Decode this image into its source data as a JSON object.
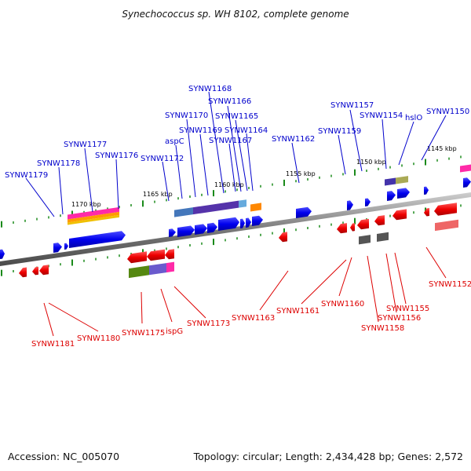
{
  "title": "Synechococcus sp. WH 8102, complete genome",
  "accession_text": "Accession: NC_005070",
  "topology_text": "Topology: circular; Length: 2,434,428 bp; Genes: 2,572",
  "colors": {
    "forward_gene": "#0000ee",
    "reverse_gene": "#ee0000",
    "backbone": "#808080",
    "tick": "#1a8a1a",
    "label_top": "#0000cc",
    "label_bottom": "#dd0000"
  },
  "scale_labels": [
    "1145 kbp",
    "1150 kbp",
    "1155 kbp",
    "1160 kbp",
    "1165 kbp",
    "1170 kbp"
  ],
  "forward_genes": [
    "SYNW1150",
    "hslO",
    "SYNW1154",
    "SYNW1157",
    "SYNW1159",
    "SYNW1162",
    "SYNW1164",
    "SYNW1165",
    "SYNW1166",
    "SYNW1167",
    "SYNW1168",
    "SYNW1169",
    "aspC",
    "SYNW1170",
    "SYNW1172",
    "SYNW1176",
    "SYNW1177",
    "SYNW1178",
    "SYNW1179"
  ],
  "reverse_genes": [
    "SYNW1152",
    "SYNW1155",
    "SYNW1156",
    "SYNW1158",
    "SYNW1160",
    "SYNW1161",
    "SYNW1163",
    "SYNW1173",
    "ispG",
    "SYNW1175",
    "SYNW1180",
    "SYNW1181"
  ]
}
